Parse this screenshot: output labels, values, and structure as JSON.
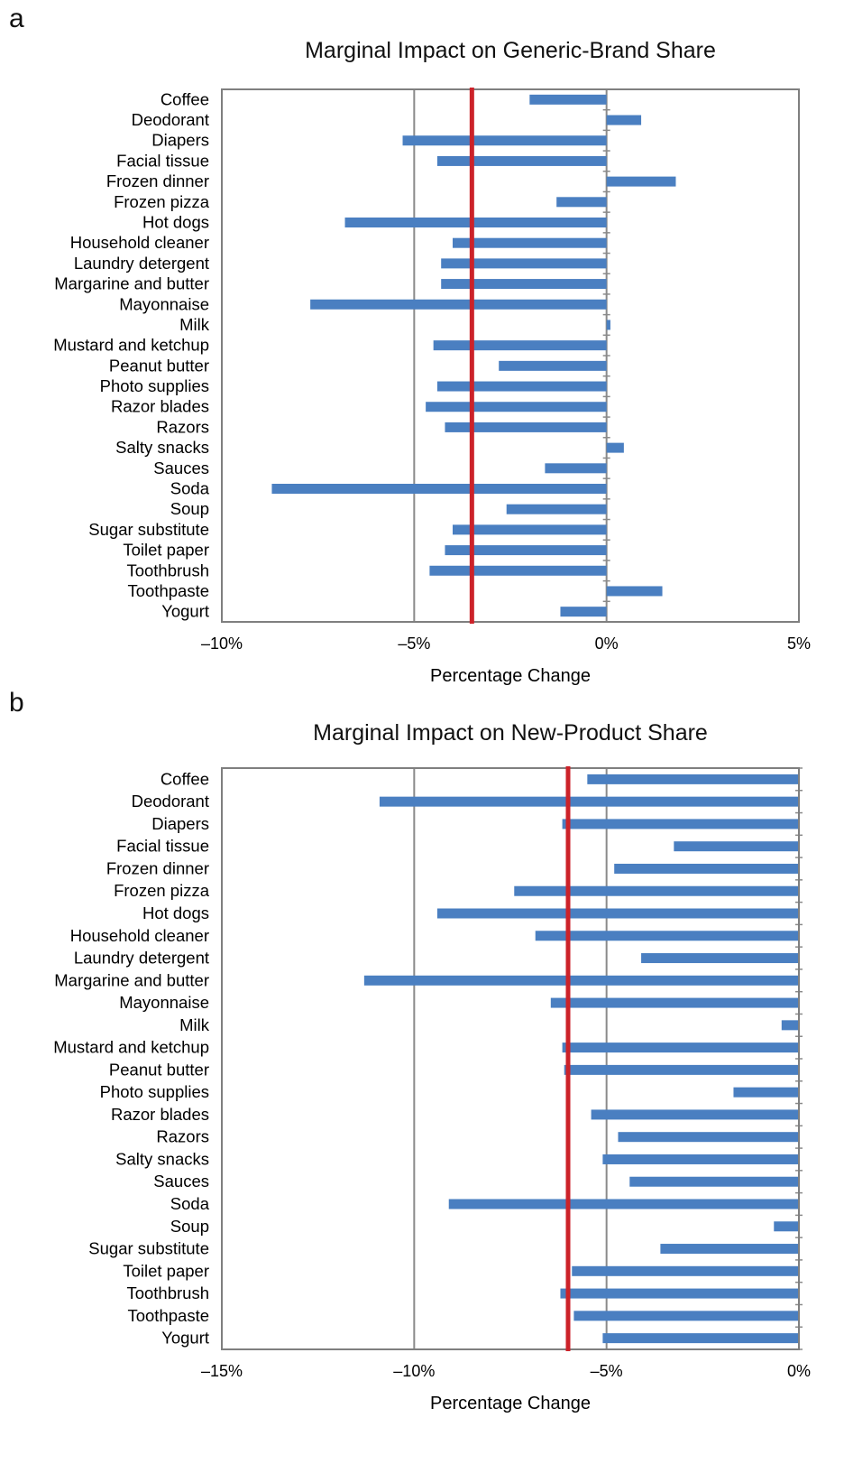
{
  "panels": [
    {
      "letter": "a",
      "chart_data": {
        "type": "bar",
        "orientation": "horizontal",
        "title": "Marginal Impact on Generic-Brand Share",
        "xlabel": "Percentage Change",
        "ylabel": "",
        "xlim": [
          -10,
          5
        ],
        "xticks": [
          -10,
          -5,
          0,
          5
        ],
        "xtick_labels": [
          "–10%",
          "–5%",
          "0%",
          "5%"
        ],
        "grid": "vertical",
        "categories": [
          "Coffee",
          "Deodorant",
          "Diapers",
          "Facial tissue",
          "Frozen dinner",
          "Frozen pizza",
          "Hot dogs",
          "Household cleaner",
          "Laundry detergent",
          "Margarine and butter",
          "Mayonnaise",
          "Milk",
          "Mustard and ketchup",
          "Peanut butter",
          "Photo supplies",
          "Razor blades",
          "Razors",
          "Salty snacks",
          "Sauces",
          "Soda",
          "Soup",
          "Sugar substitute",
          "Toilet paper",
          "Toothbrush",
          "Toothpaste",
          "Yogurt"
        ],
        "values": [
          -2.0,
          0.9,
          -5.3,
          -4.4,
          1.8,
          -1.3,
          -6.8,
          -4.0,
          -4.3,
          -4.3,
          -7.7,
          0.1,
          -4.5,
          -2.8,
          -4.4,
          -4.7,
          -4.2,
          0.45,
          -1.6,
          -8.7,
          -2.6,
          -4.0,
          -4.2,
          -4.6,
          1.45,
          -1.2
        ],
        "reference_line": -3.5,
        "colors": {
          "bar": "#4a7fc1",
          "reference_line": "#cc2229",
          "grid": "#8a8a8a",
          "frame": "#7f7f7f"
        }
      }
    },
    {
      "letter": "b",
      "chart_data": {
        "type": "bar",
        "orientation": "horizontal",
        "title": "Marginal Impact on New-Product Share",
        "xlabel": "Percentage Change",
        "ylabel": "",
        "xlim": [
          -15,
          0
        ],
        "xticks": [
          -15,
          -10,
          -5,
          0
        ],
        "xtick_labels": [
          "–15%",
          "–10%",
          "–5%",
          "0%"
        ],
        "grid": "vertical",
        "categories": [
          "Coffee",
          "Deodorant",
          "Diapers",
          "Facial tissue",
          "Frozen dinner",
          "Frozen pizza",
          "Hot dogs",
          "Household cleaner",
          "Laundry detergent",
          "Margarine and butter",
          "Mayonnaise",
          "Milk",
          "Mustard and ketchup",
          "Peanut butter",
          "Photo supplies",
          "Razor blades",
          "Razors",
          "Salty snacks",
          "Sauces",
          "Soda",
          "Soup",
          "Sugar substitute",
          "Toilet paper",
          "Toothbrush",
          "Toothpaste",
          "Yogurt"
        ],
        "values": [
          -5.5,
          -10.9,
          -6.15,
          -3.25,
          -4.8,
          -7.4,
          -9.4,
          -6.85,
          -4.1,
          -11.3,
          -6.45,
          -0.45,
          -6.15,
          -6.1,
          -1.7,
          -5.4,
          -4.7,
          -5.1,
          -4.4,
          -9.1,
          -0.65,
          -3.6,
          -5.9,
          -6.2,
          -5.85,
          -5.1
        ],
        "reference_line": -6.0,
        "colors": {
          "bar": "#4a7fc1",
          "reference_line": "#cc2229",
          "grid": "#8a8a8a",
          "frame": "#7f7f7f"
        }
      }
    }
  ]
}
